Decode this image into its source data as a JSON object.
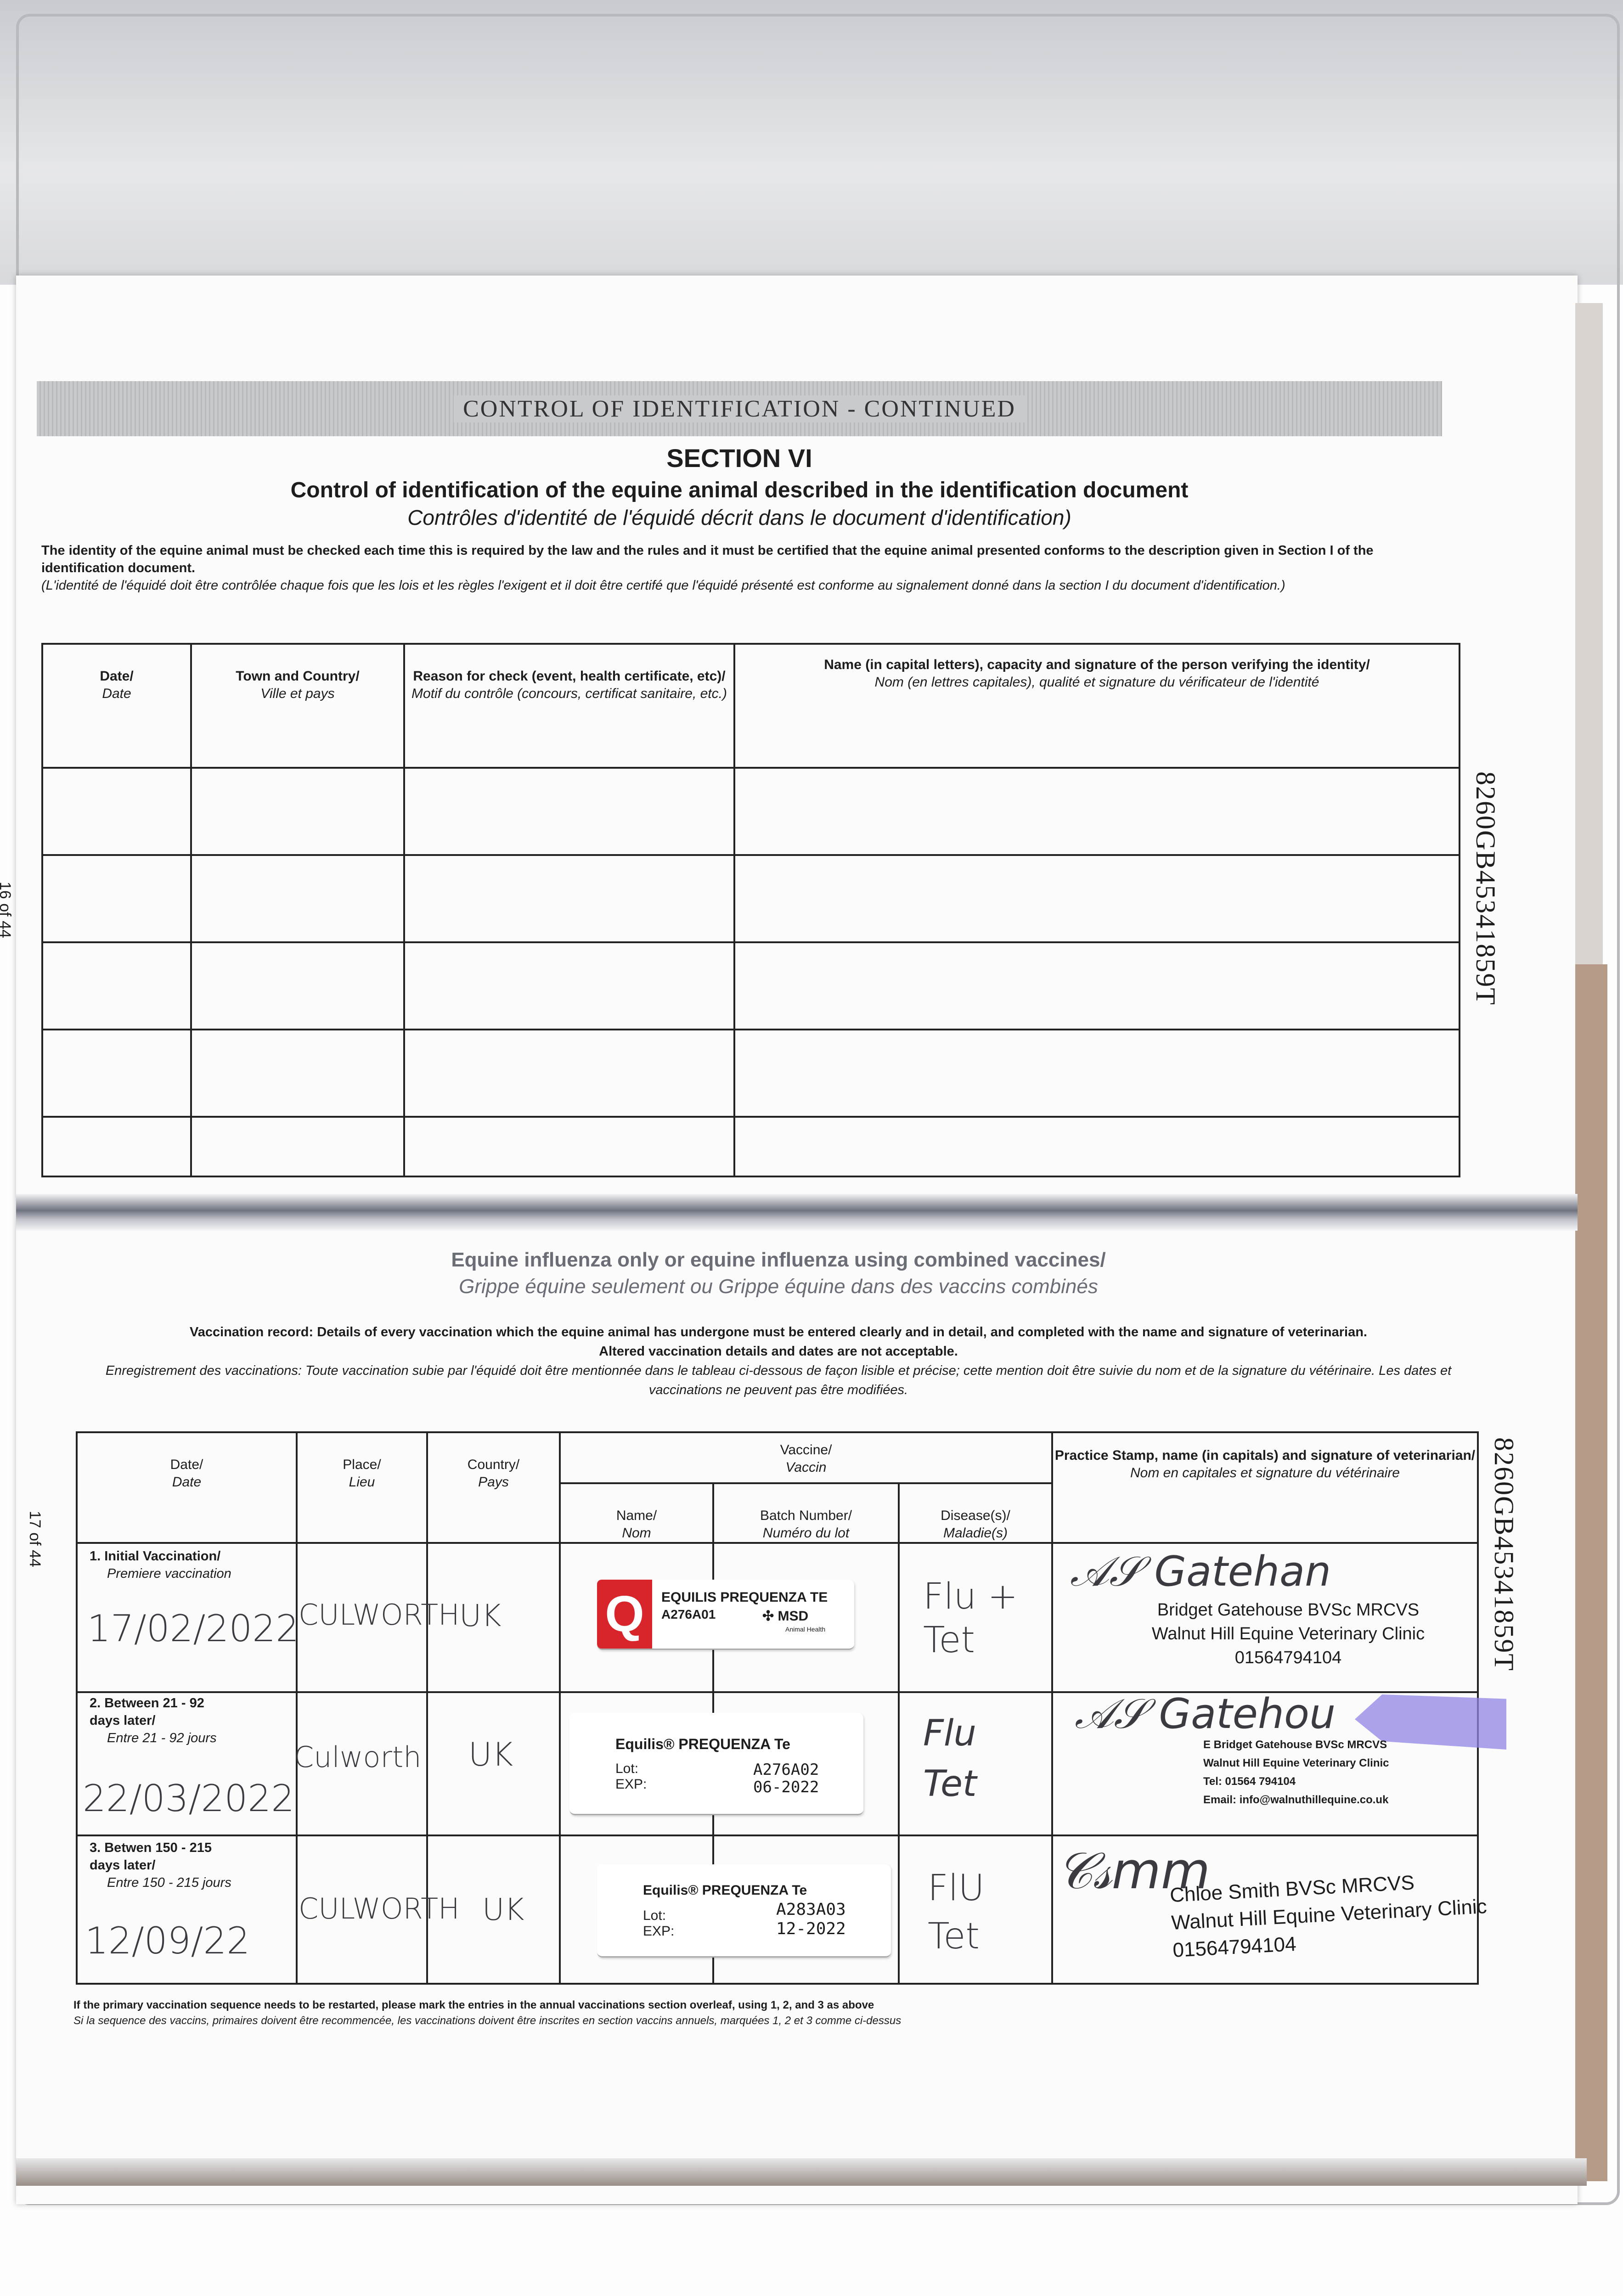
{
  "top_page": {
    "band_title": "CONTROL OF IDENTIFICATION - CONTINUED",
    "section": "SECTION VI",
    "title_en": "Control of identification of the equine animal described in the identification document",
    "title_fr": "Contrôles d'identité de l'équidé décrit dans le document d'identification)",
    "intro_en": "The identity of the equine animal must be checked each time this is required by the law and the rules and it must be certified that the equine animal presented conforms to the description given in Section I of the identification document.",
    "intro_fr": "(L'identité de l'équidé doit être contrôlée chaque fois que les lois et les règles l'exigent et il doit être certifé que l'équidé présenté est conforme au signalement donné dans la section I du document d'identification.)",
    "page_number": "16 of 44",
    "passport_number": "8260GB45341859T",
    "columns": [
      {
        "en": "Date/",
        "fr": "Date"
      },
      {
        "en": "Town and Country/",
        "fr": "Ville et pays"
      },
      {
        "en": "Reason for check (event, health certificate, etc)/",
        "fr": "Motif du contrôle (concours, certificat sanitaire, etc.)"
      },
      {
        "en": "Name (in capital letters), capacity and signature of the person verifying the identity/",
        "fr": "Nom (en lettres capitales), qualité et signature du vérificateur de l'identité"
      }
    ],
    "rows": [
      {},
      {},
      {},
      {},
      {}
    ]
  },
  "bottom_page": {
    "heading_en": "Equine influenza only or equine influenza using combined vaccines/",
    "heading_fr": "Grippe équine seulement ou Grippe équine dans des vaccins combinés",
    "record_en": "Vaccination record: Details of every vaccination which the equine animal has undergone must be entered clearly and in detail, and completed with the name and signature of veterinarian.",
    "record_en2": "Altered vaccination details and dates are not acceptable.",
    "record_fr": "Enregistrement des vaccinations: Toute vaccination subie par l'équidé doit être mentionnée dans le tableau ci-dessous de façon lisible et précise; cette mention doit être suivie du nom et de la signature du vétérinaire. Les dates et vaccinations ne peuvent pas être modifiées.",
    "page_number": "17 of 44",
    "passport_number": "8260GB45341859T",
    "columns": {
      "date": {
        "en": "Date/",
        "fr": "Date"
      },
      "place": {
        "en": "Place/",
        "fr": "Lieu"
      },
      "country": {
        "en": "Country/",
        "fr": "Pays"
      },
      "vaccine": {
        "en": "Vaccine/",
        "fr": "Vaccin"
      },
      "name": {
        "en": "Name/",
        "fr": "Nom"
      },
      "batch": {
        "en": "Batch Number/",
        "fr": "Numéro du lot"
      },
      "disease": {
        "en": "Disease(s)/",
        "fr": "Maladie(s)"
      },
      "vet": {
        "en": "Practice Stamp, name (in capitals) and signature of veterinarian/",
        "fr": "Nom en capitales et signature du vétérinaire"
      }
    },
    "rows": [
      {
        "label_en": "1. Initial Vaccination/",
        "label_fr": "Premiere vaccination",
        "date": "17/02/2022",
        "place": "CULWORTH",
        "country": "UK",
        "sticker": {
          "product": "EQUILIS PREQUENZA TE",
          "lot": "A276A01",
          "maker": "MSD",
          "maker_sub": "Animal Health",
          "logo_letter": "Q",
          "logo_color": "#d7252b"
        },
        "disease_line1": "Flu +",
        "disease_line2": "Tet",
        "vet_name": "Bridget Gatehouse BVSc MRCVS",
        "vet_clinic": "Walnut Hill Equine Veterinary Clinic",
        "vet_phone": "01564794104"
      },
      {
        "label_en": "2. Between 21 - 92 days later/",
        "label_fr": "Entre 21 - 92 jours",
        "date": "22/03/2022",
        "place": "Culworth",
        "country": "UK",
        "sticker": {
          "product": "Equilis® PREQUENZA Te",
          "lot_label": "Lot:",
          "exp_label": "EXP:",
          "lot": "A276A02",
          "exp": "06-2022"
        },
        "disease_line1": "Flu",
        "disease_line2": "Tet",
        "vet_name": "E Bridget Gatehouse BVSc MRCVS",
        "vet_clinic": "Walnut Hill Equine Veterinary Clinic",
        "vet_phone": "Tel: 01564 794104",
        "vet_email": "Email: info@walnuthillequine.co.uk",
        "highlight_color": "#8f86e6"
      },
      {
        "label_en": "3. Betwen 150 - 215 days later/",
        "label_fr": "Entre 150 - 215 jours",
        "date": "12/09/22",
        "place": "CULWORTH",
        "country": "UK",
        "sticker": {
          "product": "Equilis® PREQUENZA Te",
          "lot_label": "Lot:",
          "exp_label": "EXP:",
          "lot": "A283A03",
          "exp": "12-2022"
        },
        "disease_line1": "FlU",
        "disease_line2": "Tet",
        "vet_name": "Chloe Smith BVSc MRCVS",
        "vet_clinic": "Walnut Hill Equine Veterinary Clinic",
        "vet_phone": "01564794104"
      }
    ],
    "footer_en": "If the primary vaccination sequence needs to be restarted, please mark the entries in the annual vaccinations section overleaf, using 1, 2, and 3 as above",
    "footer_fr": "Si la sequence des vaccins, primaires doivent être recommencée, les vaccinations doivent être inscrites en section vaccins annuels, marquées 1, 2 et 3 comme ci-dessus"
  }
}
